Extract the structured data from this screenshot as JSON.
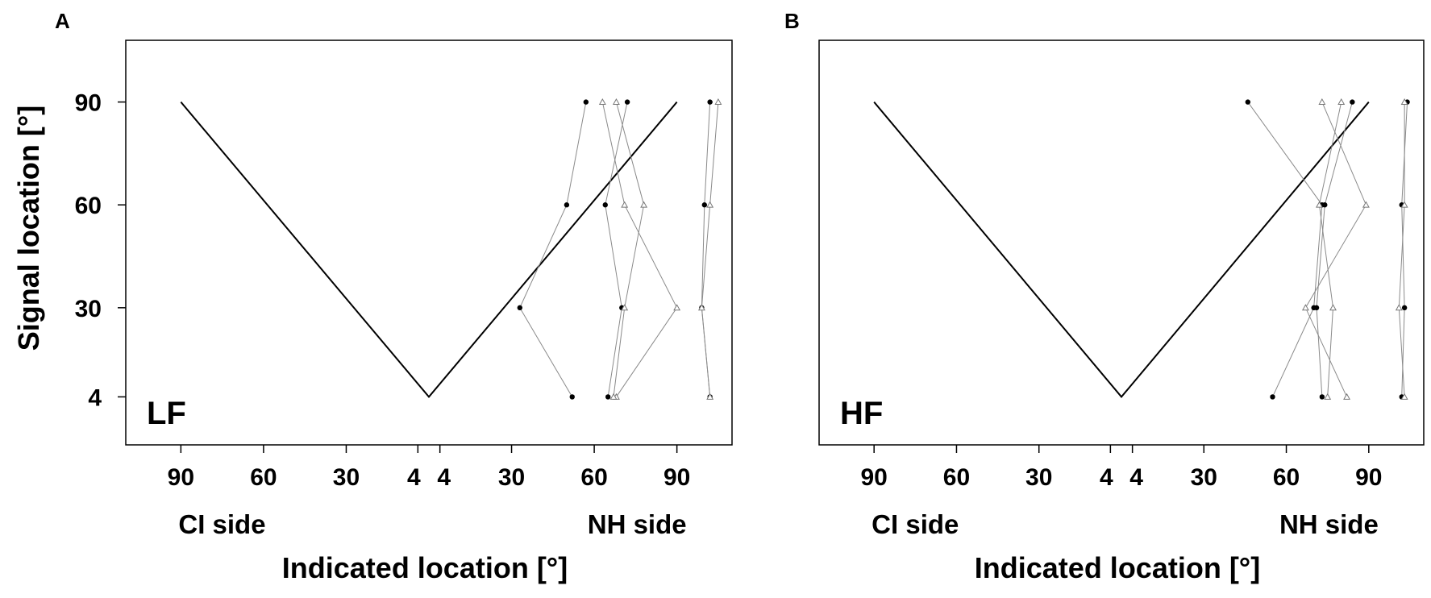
{
  "ylabel": "Signal location [°]",
  "chart_data": [
    {
      "type": "line",
      "panel": "A",
      "label": "LF",
      "xlabel": "Indicated location [°]",
      "ylabel": "Signal location [°]",
      "x_side_labels": [
        "CI side",
        "NH side"
      ],
      "x_ticks": [
        -90,
        -60,
        -30,
        -4,
        4,
        30,
        60,
        90
      ],
      "x_tick_labels": [
        "90",
        "60",
        "30",
        "4",
        "4",
        "30",
        "60",
        "90"
      ],
      "y_ticks": [
        4,
        30,
        60,
        90
      ],
      "y_tick_labels": [
        "4",
        "30",
        "60",
        "90"
      ],
      "xlim": [
        -110,
        110
      ],
      "ylim": [
        -10,
        108
      ],
      "grid": false,
      "reference": {
        "x": [
          -90,
          0,
          90
        ],
        "y": [
          90,
          4,
          90
        ]
      },
      "series": [
        {
          "marker": "filled-circle",
          "y": [
            4,
            30,
            60,
            90
          ],
          "x": [
            52,
            33,
            50,
            57
          ]
        },
        {
          "marker": "filled-circle",
          "y": [
            4,
            30,
            60,
            90
          ],
          "x": [
            65,
            70,
            64,
            72
          ]
        },
        {
          "marker": "filled-circle",
          "y": [
            4,
            30,
            60,
            90
          ],
          "x": [
            102,
            99,
            100,
            102
          ]
        },
        {
          "marker": "open-triangle",
          "y": [
            4,
            30,
            60,
            90
          ],
          "x": [
            68,
            90,
            71,
            63
          ]
        },
        {
          "marker": "open-triangle",
          "y": [
            4,
            30,
            60,
            90
          ],
          "x": [
            102,
            99,
            102,
            105
          ]
        },
        {
          "marker": "open-triangle",
          "y": [
            4,
            30,
            60,
            90
          ],
          "x": [
            67,
            71,
            78,
            68
          ]
        }
      ]
    },
    {
      "type": "line",
      "panel": "B",
      "label": "HF",
      "xlabel": "Indicated location [°]",
      "ylabel": "",
      "x_side_labels": [
        "CI side",
        "NH side"
      ],
      "x_ticks": [
        -90,
        -60,
        -30,
        -4,
        4,
        30,
        60,
        90
      ],
      "x_tick_labels": [
        "90",
        "60",
        "30",
        "4",
        "4",
        "30",
        "60",
        "90"
      ],
      "y_ticks": [
        4,
        30,
        60,
        90
      ],
      "y_tick_labels": [],
      "xlim": [
        -110,
        110
      ],
      "ylim": [
        -10,
        108
      ],
      "grid": false,
      "reference": {
        "x": [
          -90,
          0,
          90
        ],
        "y": [
          90,
          4,
          90
        ]
      },
      "series": [
        {
          "marker": "filled-circle",
          "y": [
            4,
            30,
            60,
            90
          ],
          "x": [
            55,
            70,
            73,
            46
          ]
        },
        {
          "marker": "filled-circle",
          "y": [
            4,
            30,
            60,
            90
          ],
          "x": [
            73,
            71,
            74,
            84
          ]
        },
        {
          "marker": "filled-circle",
          "y": [
            4,
            30,
            60,
            90
          ],
          "x": [
            102,
            103,
            102,
            104
          ]
        },
        {
          "marker": "open-triangle",
          "y": [
            4,
            30,
            60,
            90
          ],
          "x": [
            82,
            67,
            89,
            73
          ]
        },
        {
          "marker": "open-triangle",
          "y": [
            4,
            30,
            60,
            90
          ],
          "x": [
            103,
            101,
            103,
            103
          ]
        },
        {
          "marker": "open-triangle",
          "y": [
            4,
            30,
            60,
            90
          ],
          "x": [
            75,
            77,
            72,
            80
          ]
        }
      ]
    }
  ]
}
